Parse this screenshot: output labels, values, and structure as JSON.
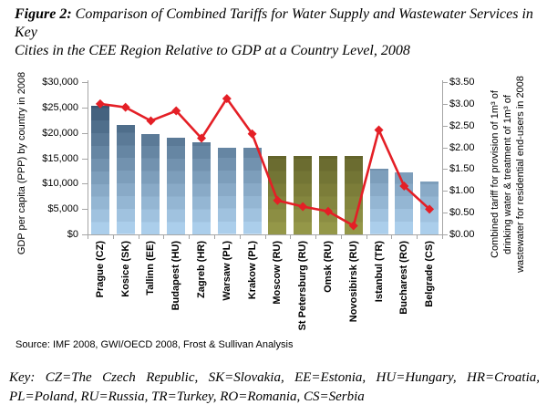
{
  "figure": {
    "title_prefix": "Figure 2:",
    "title_line1": "Comparison of Combined Tariffs for Water Supply and Wastewater Services in Key",
    "title_line2": "Cities in the CEE Region Relative to GDP at a Country Level, 2008"
  },
  "chart_data": {
    "type": "bar",
    "subtype": "bar-line-combo",
    "categories": [
      "Prague (CZ)",
      "Kosice (SK)",
      "Tallinn (EE)",
      "Budapest (HU)",
      "Zagreb (HR)",
      "Warsaw (PL)",
      "Krakow (PL)",
      "Moscow (RU)",
      "St Petersburg (RU)",
      "Omsk (RU)",
      "Novosibirsk (RU)",
      "Istanbul (TR)",
      "Bucharest (RO)",
      "Belgrade (CS)"
    ],
    "series": [
      {
        "name": "GDP per capita (PPP) by country in 2008",
        "type": "bar",
        "axis": "left",
        "values": [
          25400,
          21500,
          19800,
          19100,
          18200,
          17000,
          17000,
          15500,
          15500,
          15500,
          15500,
          12900,
          12200,
          10500
        ]
      },
      {
        "name": "Combined tariff for provision of 1m³ of drinking water & treatment of 1m³ of wastewater for residential end-users in 2008",
        "type": "line",
        "axis": "right",
        "values": [
          3.0,
          2.92,
          2.61,
          2.84,
          2.21,
          3.12,
          2.31,
          0.78,
          0.64,
          0.53,
          0.2,
          2.4,
          1.11,
          0.58
        ]
      }
    ],
    "bar_style": [
      "blue",
      "blue",
      "blue",
      "blue",
      "blue",
      "blue",
      "blue",
      "olive",
      "olive",
      "olive",
      "olive",
      "blue",
      "blue",
      "blue"
    ],
    "left_axis": {
      "label": "GDP per capita (PPP) by country in 2008",
      "min": 0,
      "max": 30000,
      "step": 5000,
      "tick_labels": [
        "$0",
        "$5,000",
        "$10,000",
        "$15,000",
        "$20,000",
        "$25,000",
        "$30,000"
      ]
    },
    "right_axis": {
      "label_lines": [
        "Combined tariff for provision of 1m³ of",
        "drinking water & treatment of 1m³ of",
        "wastewater for residential end-users in 2008"
      ],
      "min": 0,
      "max": 3.5,
      "step": 0.5,
      "tick_labels": [
        "$0.00",
        "$0.50",
        "$1.00",
        "$1.50",
        "$2.00",
        "$2.50",
        "$3.00",
        "$3.50"
      ]
    },
    "colors": {
      "line": "#e41f26",
      "bar_blue_top": "#2d4a67",
      "bar_blue_bottom": "#abceeb",
      "bar_olive_top": "#3a3913",
      "bar_olive_bottom": "#949748",
      "axis": "#a6a6a6"
    },
    "grid": false,
    "legend": "none"
  },
  "source": "Source: IMF 2008, GWI/OECD 2008, Frost & Sullivan Analysis",
  "key": "Key: CZ=The Czech Republic, SK=Slovakia, EE=Estonia, HU=Hungary, HR=Croatia, PL=Poland, RU=Russia, TR=Turkey, RO=Romania, CS=Serbia"
}
